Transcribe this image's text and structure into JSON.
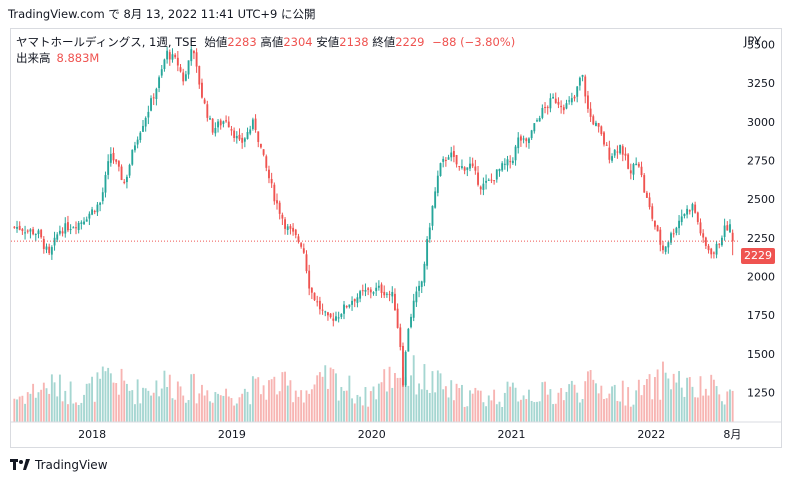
{
  "top_caption": "TradingView.com で 8月 13, 2022 11:41 UTC+9 に公開",
  "header": {
    "symbol": "ヤマトホールディングス, 1週, TSE",
    "open_label": "始値",
    "open": "2283",
    "high_label": "高値",
    "high": "2304",
    "low_label": "安値",
    "low": "2138",
    "close_label": "終値",
    "close": "2229",
    "change": "−88 (−3.80%)"
  },
  "volume": {
    "label": "出来高",
    "value": "8.883M"
  },
  "currency": "JPY",
  "last_price_label": "2229",
  "footer": {
    "brand": "TradingView"
  },
  "colors": {
    "up": "#26a69a",
    "down": "#ef5350",
    "up_vol": "#a5d6d1",
    "down_vol": "#f7b4b2",
    "text": "#131722"
  },
  "chart_data": {
    "type": "candlestick",
    "interval": "weekly",
    "y_axis": {
      "ticks": [
        1250,
        1500,
        1750,
        2000,
        2250,
        2500,
        2750,
        3000,
        3250,
        3500
      ],
      "range": [
        1060,
        3600
      ],
      "position": "right"
    },
    "x_axis": {
      "ticks": [
        "2018",
        "2019",
        "2020",
        "2021",
        "2022",
        "8月"
      ],
      "tick_positions": [
        2018.0,
        2019.0,
        2020.0,
        2021.0,
        2022.0,
        2022.58
      ]
    },
    "time_range": [
      2017.42,
      2022.62
    ],
    "last_price": 2229,
    "price_path": [
      [
        2017.45,
        2320
      ],
      [
        2017.6,
        2280
      ],
      [
        2017.68,
        2130
      ],
      [
        2017.75,
        2300
      ],
      [
        2017.9,
        2350
      ],
      [
        2018.05,
        2480
      ],
      [
        2018.12,
        2800
      ],
      [
        2018.22,
        2600
      ],
      [
        2018.3,
        2880
      ],
      [
        2018.4,
        3100
      ],
      [
        2018.48,
        3300
      ],
      [
        2018.52,
        3450
      ],
      [
        2018.6,
        3380
      ],
      [
        2018.65,
        3250
      ],
      [
        2018.7,
        3500
      ],
      [
        2018.78,
        3150
      ],
      [
        2018.85,
        2950
      ],
      [
        2018.95,
        3020
      ],
      [
        2019.05,
        2850
      ],
      [
        2019.15,
        3000
      ],
      [
        2019.22,
        2750
      ],
      [
        2019.3,
        2500
      ],
      [
        2019.38,
        2320
      ],
      [
        2019.45,
        2250
      ],
      [
        2019.5,
        2200
      ],
      [
        2019.55,
        1920
      ],
      [
        2019.62,
        1800
      ],
      [
        2019.68,
        1720
      ],
      [
        2019.75,
        1750
      ],
      [
        2019.85,
        1850
      ],
      [
        2019.95,
        1900
      ],
      [
        2020.05,
        1920
      ],
      [
        2020.15,
        1870
      ],
      [
        2020.2,
        1550
      ],
      [
        2020.22,
        1300
      ],
      [
        2020.25,
        1650
      ],
      [
        2020.3,
        1850
      ],
      [
        2020.35,
        1950
      ],
      [
        2020.42,
        2400
      ],
      [
        2020.48,
        2700
      ],
      [
        2020.55,
        2800
      ],
      [
        2020.62,
        2700
      ],
      [
        2020.7,
        2720
      ],
      [
        2020.78,
        2580
      ],
      [
        2020.85,
        2620
      ],
      [
        2020.92,
        2700
      ],
      [
        2021.0,
        2750
      ],
      [
        2021.05,
        2900
      ],
      [
        2021.1,
        2850
      ],
      [
        2021.2,
        3050
      ],
      [
        2021.3,
        3150
      ],
      [
        2021.38,
        3100
      ],
      [
        2021.45,
        3150
      ],
      [
        2021.5,
        3320
      ],
      [
        2021.55,
        3050
      ],
      [
        2021.62,
        2950
      ],
      [
        2021.7,
        2780
      ],
      [
        2021.78,
        2850
      ],
      [
        2021.85,
        2650
      ],
      [
        2021.9,
        2780
      ],
      [
        2021.95,
        2550
      ],
      [
        2022.0,
        2400
      ],
      [
        2022.08,
        2170
      ],
      [
        2022.15,
        2280
      ],
      [
        2022.22,
        2400
      ],
      [
        2022.3,
        2460
      ],
      [
        2022.38,
        2200
      ],
      [
        2022.45,
        2150
      ],
      [
        2022.52,
        2300
      ],
      [
        2022.56,
        2330
      ],
      [
        2022.6,
        2229
      ]
    ],
    "volume_axis_max": 30,
    "volume_path": [
      [
        2017.45,
        8
      ],
      [
        2017.68,
        12
      ],
      [
        2017.9,
        9
      ],
      [
        2018.12,
        14
      ],
      [
        2018.3,
        10
      ],
      [
        2018.5,
        13
      ],
      [
        2018.7,
        11
      ],
      [
        2018.95,
        9
      ],
      [
        2019.3,
        12
      ],
      [
        2019.55,
        10
      ],
      [
        2019.7,
        14
      ],
      [
        2019.95,
        8
      ],
      [
        2020.2,
        18
      ],
      [
        2020.25,
        16
      ],
      [
        2020.42,
        13
      ],
      [
        2020.6,
        9
      ],
      [
        2020.85,
        8
      ],
      [
        2021.05,
        10
      ],
      [
        2021.3,
        9
      ],
      [
        2021.55,
        12
      ],
      [
        2021.85,
        9
      ],
      [
        2022.05,
        12
      ],
      [
        2022.1,
        16
      ],
      [
        2022.3,
        10
      ],
      [
        2022.45,
        11
      ],
      [
        2022.6,
        9
      ]
    ]
  }
}
